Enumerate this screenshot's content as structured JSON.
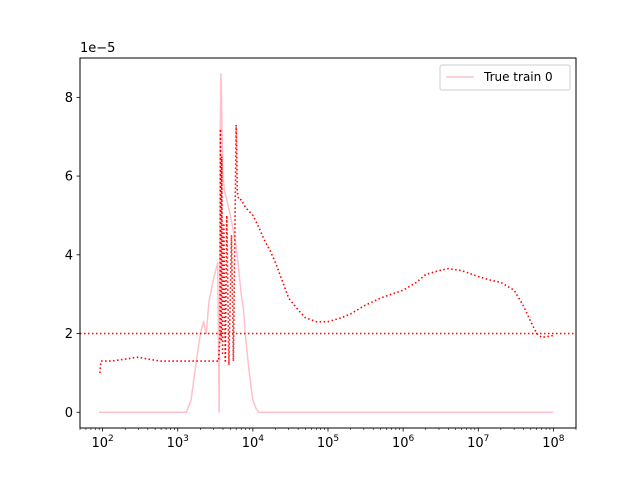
{
  "chart_data": {
    "type": "line",
    "xscale": "log",
    "xlim": [
      50,
      200000000
    ],
    "ylim": [
      -0.4,
      9.0
    ],
    "y_scale_offset_label": "1e−5",
    "grid": false,
    "legend_position": "top-right",
    "x_ticks": [
      {
        "value": 100,
        "base": "10",
        "exp": "2"
      },
      {
        "value": 1000,
        "base": "10",
        "exp": "3"
      },
      {
        "value": 10000,
        "base": "10",
        "exp": "4"
      },
      {
        "value": 100000,
        "base": "10",
        "exp": "5"
      },
      {
        "value": 1000000,
        "base": "10",
        "exp": "6"
      },
      {
        "value": 10000000,
        "base": "10",
        "exp": "7"
      },
      {
        "value": 100000000,
        "base": "10",
        "exp": "8"
      }
    ],
    "y_ticks": [
      {
        "value": 0,
        "label": "0"
      },
      {
        "value": 2,
        "label": "2"
      },
      {
        "value": 4,
        "label": "4"
      },
      {
        "value": 6,
        "label": "6"
      },
      {
        "value": 8,
        "label": "8"
      }
    ],
    "series": [
      {
        "name": "True train 0",
        "color": "#ffc0cb",
        "style": "solid",
        "x": [
          90,
          1000,
          1300,
          1500,
          1800,
          2000,
          2200,
          2400,
          2600,
          2800,
          3000,
          3200,
          3400,
          3550,
          3650,
          3700,
          3750,
          3800,
          3900,
          4000,
          4200,
          4500,
          5000,
          5500,
          6000,
          6500,
          7000,
          7500,
          8000,
          8500,
          9000,
          9500,
          10000,
          11000,
          12000,
          14000,
          20000,
          100000,
          1000000,
          10000000,
          100000000
        ],
        "y": [
          0,
          0,
          0,
          0.3,
          1.4,
          2.0,
          2.3,
          2.0,
          2.8,
          3.1,
          3.4,
          3.6,
          3.8,
          0,
          4.5,
          7.5,
          8.6,
          8.3,
          7.0,
          6.0,
          5.6,
          5.4,
          5.0,
          4.6,
          4.2,
          3.6,
          3.0,
          2.6,
          1.9,
          1.4,
          1.0,
          0.6,
          0.3,
          0.1,
          0,
          0,
          0,
          0,
          0,
          0,
          0
        ]
      },
      {
        "name": "",
        "color": "#ff0000",
        "style": "dotted",
        "x": [
          92,
          95,
          100,
          130,
          200,
          300,
          400,
          600,
          800,
          1000,
          1500,
          2000,
          2500,
          3000,
          3300,
          3500,
          3650,
          3700,
          3750,
          3800,
          3850,
          3950,
          4100,
          4300,
          4500,
          4800,
          5200,
          5500,
          5800,
          6000,
          6200,
          6500,
          7000,
          7500,
          8000,
          9000,
          10000,
          12000,
          14000,
          17000,
          20000,
          25000,
          30000,
          40000,
          50000,
          70000,
          100000,
          150000,
          200000,
          300000,
          500000,
          700000,
          1000000,
          1500000,
          2000000,
          3000000,
          4000000,
          6000000,
          10000000,
          15000000,
          20000000,
          30000000,
          40000000,
          50000000,
          60000000,
          70000000,
          100000000
        ],
        "y": [
          1.0,
          1.3,
          1.3,
          1.3,
          1.35,
          1.4,
          1.35,
          1.3,
          1.3,
          1.3,
          1.3,
          1.3,
          1.3,
          1.3,
          1.3,
          1.3,
          2.0,
          7.2,
          4.5,
          1.8,
          6.5,
          1.5,
          4.8,
          1.3,
          5.0,
          1.2,
          4.5,
          1.3,
          5.0,
          7.3,
          5.6,
          5.4,
          5.4,
          5.3,
          5.2,
          5.1,
          5.0,
          4.7,
          4.4,
          4.1,
          3.8,
          3.3,
          2.9,
          2.6,
          2.4,
          2.3,
          2.3,
          2.4,
          2.5,
          2.7,
          2.9,
          3.0,
          3.1,
          3.3,
          3.5,
          3.6,
          3.65,
          3.6,
          3.45,
          3.35,
          3.3,
          3.1,
          2.7,
          2.3,
          2.0,
          1.9,
          1.95
        ]
      },
      {
        "name": "",
        "color": "#ff0000",
        "style": "dotted",
        "x": [
          50,
          200000000
        ],
        "y": [
          2.0,
          2.0
        ]
      }
    ]
  }
}
